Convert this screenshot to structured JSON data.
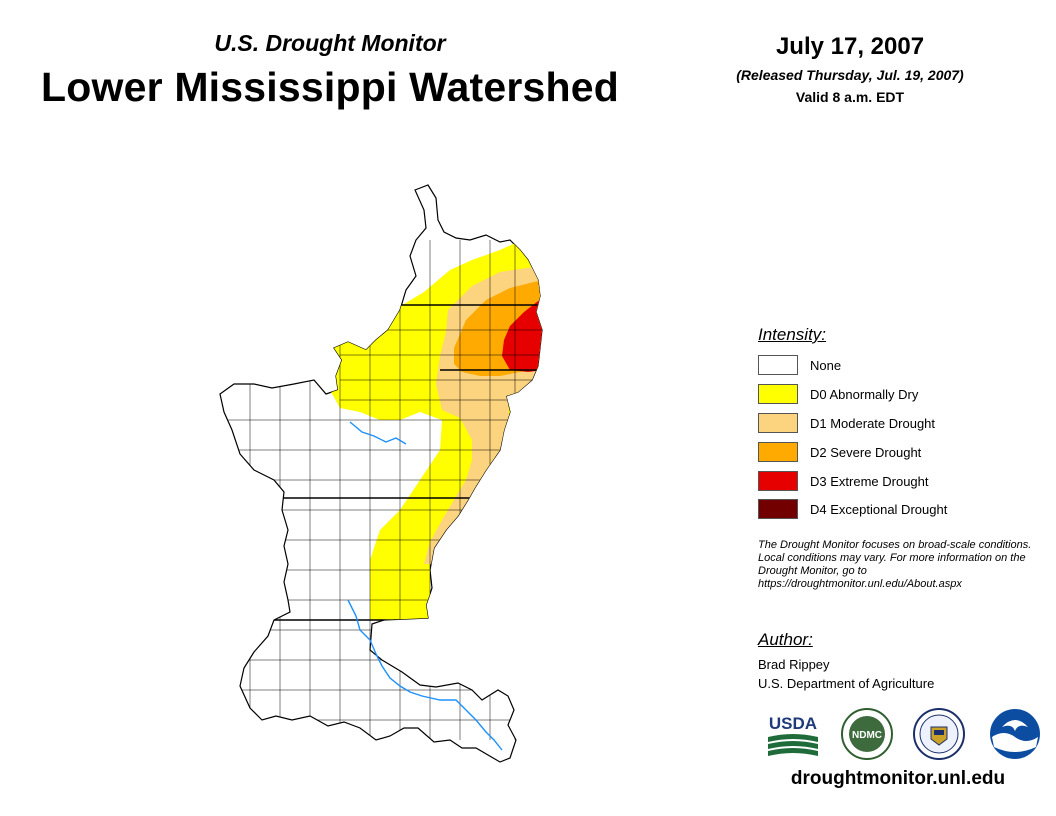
{
  "header": {
    "subtitle": "U.S. Drought Monitor",
    "title": "Lower Mississippi Watershed",
    "date": "July 17, 2007",
    "released": "(Released Thursday, Jul. 19, 2007)",
    "valid": "Valid 8 a.m. EDT"
  },
  "legend": {
    "title": "Intensity:",
    "items": [
      {
        "label": "None",
        "color": "#ffffff"
      },
      {
        "label": "D0 Abnormally Dry",
        "color": "#ffff00"
      },
      {
        "label": "D1 Moderate Drought",
        "color": "#fcd37f"
      },
      {
        "label": "D2 Severe Drought",
        "color": "#ffaa00"
      },
      {
        "label": "D3 Extreme Drought",
        "color": "#e60000"
      },
      {
        "label": "D4 Exceptional Drought",
        "color": "#730000"
      }
    ]
  },
  "note": {
    "text": "The Drought Monitor focuses on broad-scale conditions. Local conditions may vary. For more information on the Drought Monitor, go to https://droughtmonitor.unl.edu/About.aspx"
  },
  "author": {
    "title": "Author:",
    "name": "Brad Rippey",
    "org": "U.S. Department of Agriculture"
  },
  "logos": {
    "usda": "USDA",
    "ndmc": "NDMC",
    "doc": "department-of-commerce-seal",
    "noaa": "NOAA"
  },
  "footer": {
    "url": "droughtmonitor.unl.edu"
  }
}
